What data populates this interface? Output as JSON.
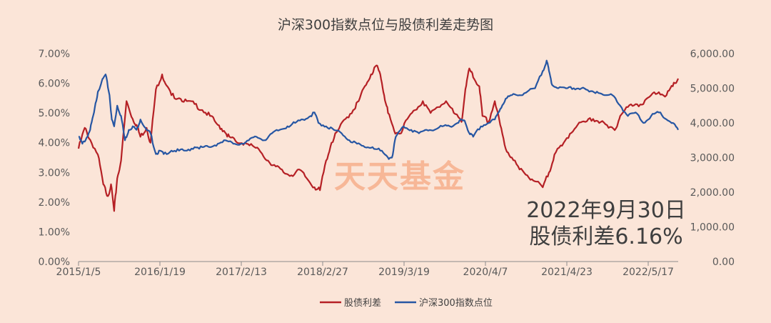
{
  "chart_data": {
    "type": "line",
    "title": "沪深300指数点位与股债利差走势图",
    "x_tick_labels": [
      "2015/1/5",
      "2016/1/19",
      "2017/2/13",
      "2018/2/27",
      "2019/3/19",
      "2020/4/7",
      "2021/4/23",
      "2022/5/17"
    ],
    "y_left_ticks": [
      "0.00%",
      "1.00%",
      "2.00%",
      "3.00%",
      "4.00%",
      "5.00%",
      "6.00%",
      "7.00%"
    ],
    "y_right_ticks": [
      "0.00",
      "1,000.00",
      "2,000.00",
      "3,000.00",
      "4,000.00",
      "5,000.00",
      "6,000.00"
    ],
    "ylim_left": [
      0,
      7
    ],
    "ylim_right": [
      0,
      6000
    ],
    "xlim_years": [
      2015.0,
      2022.75
    ],
    "legend_position": "bottom",
    "series": [
      {
        "name": "股债利差",
        "axis": "left",
        "color": "#b52025",
        "x": [
          2015.0,
          2015.08,
          2015.15,
          2015.25,
          2015.32,
          2015.38,
          2015.42,
          2015.46,
          2015.5,
          2015.55,
          2015.62,
          2015.7,
          2015.75,
          2015.8,
          2015.88,
          2015.93,
          2016.0,
          2016.08,
          2016.12,
          2016.2,
          2016.3,
          2016.4,
          2016.5,
          2016.6,
          2016.7,
          2016.8,
          2016.88,
          2016.95,
          2017.05,
          2017.15,
          2017.25,
          2017.35,
          2017.45,
          2017.55,
          2017.65,
          2017.75,
          2017.85,
          2017.95,
          2018.05,
          2018.12,
          2018.2,
          2018.27,
          2018.35,
          2018.45,
          2018.55,
          2018.62,
          2018.7,
          2018.78,
          2018.85,
          2018.9,
          2018.95,
          2019.0,
          2019.08,
          2019.15,
          2019.25,
          2019.35,
          2019.45,
          2019.55,
          2019.65,
          2019.75,
          2019.85,
          2019.95,
          2020.0,
          2020.05,
          2020.1,
          2020.18,
          2020.22,
          2020.3,
          2020.38,
          2020.45,
          2020.52,
          2020.6,
          2020.7,
          2020.8,
          2020.9,
          2021.0,
          2021.08,
          2021.15,
          2021.25,
          2021.35,
          2021.45,
          2021.55,
          2021.65,
          2021.75,
          2021.85,
          2021.95,
          2022.0,
          2022.1,
          2022.2,
          2022.3,
          2022.4,
          2022.5,
          2022.6,
          2022.68,
          2022.75
        ],
        "values": [
          3.8,
          4.5,
          4.1,
          3.6,
          2.6,
          2.2,
          2.6,
          1.7,
          2.8,
          3.4,
          5.4,
          4.8,
          4.6,
          4.2,
          4.5,
          4.0,
          5.8,
          6.3,
          6.0,
          5.6,
          5.5,
          5.4,
          5.3,
          5.1,
          4.9,
          4.6,
          4.4,
          4.2,
          4.0,
          4.0,
          3.9,
          3.7,
          3.4,
          3.2,
          3.0,
          2.9,
          3.1,
          2.8,
          2.5,
          2.4,
          3.4,
          4.0,
          4.4,
          4.8,
          5.1,
          5.4,
          5.9,
          6.3,
          6.6,
          6.3,
          5.6,
          5.0,
          4.4,
          4.3,
          4.8,
          5.1,
          5.4,
          5.0,
          5.2,
          5.4,
          5.0,
          4.7,
          5.8,
          6.5,
          6.2,
          5.9,
          4.9,
          4.7,
          5.4,
          4.6,
          3.8,
          3.5,
          3.1,
          2.9,
          2.7,
          2.5,
          3.0,
          3.6,
          3.9,
          4.3,
          4.6,
          4.7,
          4.8,
          4.7,
          4.5,
          4.5,
          4.9,
          5.2,
          5.3,
          5.3,
          5.6,
          5.7,
          5.6,
          5.9,
          6.16
        ]
      },
      {
        "name": "沪深300指数点位",
        "axis": "right",
        "color": "#2656a3",
        "x": [
          2015.0,
          2015.05,
          2015.1,
          2015.15,
          2015.2,
          2015.25,
          2015.3,
          2015.35,
          2015.4,
          2015.43,
          2015.46,
          2015.5,
          2015.55,
          2015.6,
          2015.65,
          2015.7,
          2015.75,
          2015.8,
          2015.88,
          2015.93,
          2016.0,
          2016.05,
          2016.1,
          2016.2,
          2016.3,
          2016.4,
          2016.5,
          2016.6,
          2016.7,
          2016.8,
          2016.9,
          2017.0,
          2017.1,
          2017.2,
          2017.3,
          2017.4,
          2017.5,
          2017.6,
          2017.7,
          2017.8,
          2017.9,
          2018.0,
          2018.05,
          2018.1,
          2018.2,
          2018.3,
          2018.4,
          2018.5,
          2018.6,
          2018.7,
          2018.8,
          2018.9,
          2019.0,
          2019.05,
          2019.1,
          2019.2,
          2019.3,
          2019.4,
          2019.5,
          2019.6,
          2019.7,
          2019.8,
          2019.9,
          2019.95,
          2020.0,
          2020.05,
          2020.1,
          2020.2,
          2020.3,
          2020.38,
          2020.45,
          2020.52,
          2020.6,
          2020.7,
          2020.8,
          2020.9,
          2021.0,
          2021.05,
          2021.08,
          2021.12,
          2021.2,
          2021.3,
          2021.4,
          2021.5,
          2021.6,
          2021.7,
          2021.8,
          2021.9,
          2022.0,
          2022.1,
          2022.2,
          2022.3,
          2022.4,
          2022.5,
          2022.6,
          2022.68,
          2022.75
        ],
        "values": [
          3600,
          3400,
          3550,
          3800,
          4300,
          4900,
          5200,
          5400,
          4800,
          4100,
          3900,
          4500,
          4200,
          3500,
          3800,
          3900,
          3800,
          4100,
          3800,
          3700,
          3100,
          3200,
          3100,
          3200,
          3200,
          3200,
          3300,
          3300,
          3300,
          3400,
          3500,
          3400,
          3400,
          3500,
          3600,
          3500,
          3700,
          3800,
          3900,
          4000,
          4100,
          4200,
          4300,
          4000,
          3900,
          3800,
          3700,
          3500,
          3400,
          3300,
          3300,
          3200,
          3000,
          3000,
          3600,
          3900,
          3800,
          3700,
          3800,
          3800,
          3900,
          3900,
          4000,
          4100,
          4000,
          3700,
          3600,
          3900,
          4000,
          4100,
          4400,
          4700,
          4800,
          4800,
          4900,
          5000,
          5500,
          5800,
          5500,
          5100,
          5000,
          5000,
          5000,
          5000,
          4900,
          4900,
          4800,
          4800,
          4500,
          4200,
          4300,
          4000,
          4200,
          4300,
          4100,
          4000,
          3800
        ]
      }
    ],
    "annotation": [
      "2022年9月30日",
      "股债利差6.16%"
    ],
    "watermark": "天天基金"
  }
}
